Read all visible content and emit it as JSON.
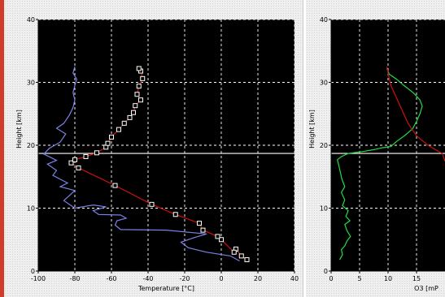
{
  "colors": {
    "plot_bg": "#000000",
    "grid": "#ffffff",
    "temperature": "#cc1111",
    "dewpoint": "#7a82e6",
    "ozone": "#22dd44",
    "tropopause": "#ffffff"
  },
  "chart_data": [
    {
      "type": "line",
      "xlabel": "Temperature [°C]",
      "ylabel": "Height [km]",
      "xlim": [
        -100,
        40
      ],
      "ylim": [
        0,
        40
      ],
      "xticks": [
        "-100",
        "-80",
        "-60",
        "-40",
        "-20",
        "0",
        "20",
        "40"
      ],
      "yticks": [
        "0",
        "10",
        "20",
        "30",
        "40"
      ],
      "grid": true,
      "hline_y": 18.7,
      "series": [
        {
          "color": "#cc1111",
          "markers": true,
          "points": [
            [
              14,
              1.8
            ],
            [
              11,
              2.4
            ],
            [
              8,
              3.5
            ],
            [
              7,
              3.0
            ],
            [
              0,
              5.0
            ],
            [
              -2,
              5.5
            ],
            [
              -10,
              6.5
            ],
            [
              -12,
              7.6
            ],
            [
              -25,
              9.0
            ],
            [
              -38,
              10.6
            ],
            [
              -58,
              13.6
            ],
            [
              -78,
              16.4
            ],
            [
              -82,
              17.2
            ],
            [
              -80,
              17.7
            ],
            [
              -74,
              18.2
            ],
            [
              -68,
              18.8
            ],
            [
              -63,
              19.7
            ],
            [
              -62,
              20.3
            ],
            [
              -60,
              21.3
            ],
            [
              -56,
              22.5
            ],
            [
              -53,
              23.5
            ],
            [
              -50,
              24.4
            ],
            [
              -48,
              25.2
            ],
            [
              -47,
              26.3
            ],
            [
              -44,
              27.2
            ],
            [
              -46,
              28.1
            ],
            [
              -45,
              29.4
            ],
            [
              -43,
              30.6
            ],
            [
              -44,
              31.8
            ],
            [
              -45,
              32.2
            ]
          ]
        },
        {
          "color": "#7a82e6",
          "markers": false,
          "points": [
            [
              10,
              1.6
            ],
            [
              5,
              2.4
            ],
            [
              -8,
              3.0
            ],
            [
              -18,
              3.7
            ],
            [
              -22,
              4.6
            ],
            [
              -15,
              5.3
            ],
            [
              -8,
              5.9
            ],
            [
              -30,
              6.5
            ],
            [
              -55,
              6.6
            ],
            [
              -58,
              7.3
            ],
            [
              -57,
              8.0
            ],
            [
              -52,
              8.4
            ],
            [
              -55,
              8.9
            ],
            [
              -67,
              9.0
            ],
            [
              -70,
              9.6
            ],
            [
              -63,
              10.2
            ],
            [
              -70,
              10.5
            ],
            [
              -80,
              10.0
            ],
            [
              -86,
              11.2
            ],
            [
              -80,
              12.8
            ],
            [
              -88,
              13.4
            ],
            [
              -84,
              14.0
            ],
            [
              -92,
              15.2
            ],
            [
              -90,
              16.0
            ],
            [
              -95,
              17.0
            ],
            [
              -90,
              17.6
            ],
            [
              -97,
              18.6
            ],
            [
              -94,
              19.5
            ],
            [
              -88,
              20.5
            ],
            [
              -85,
              21.8
            ],
            [
              -90,
              22.7
            ],
            [
              -86,
              23.5
            ],
            [
              -83,
              24.8
            ],
            [
              -81,
              26.0
            ],
            [
              -80,
              27.2
            ],
            [
              -81,
              28.4
            ],
            [
              -80,
              29.5
            ],
            [
              -79,
              30.5
            ],
            [
              -81,
              31.5
            ],
            [
              -80,
              32.5
            ]
          ]
        }
      ]
    },
    {
      "type": "line",
      "xlabel": "O3 [mP",
      "ylabel": "Height [km]",
      "xlim": [
        0,
        20
      ],
      "ylim": [
        0,
        40
      ],
      "xticks": [
        "0",
        "5",
        "10",
        "15"
      ],
      "yticks": [
        "0",
        "10",
        "20",
        "30",
        "40"
      ],
      "grid": true,
      "hline_y": 18.7,
      "series": [
        {
          "color": "#22dd44",
          "markers": false,
          "points": [
            [
              1.5,
              1.8
            ],
            [
              2.0,
              2.6
            ],
            [
              1.8,
              3.4
            ],
            [
              2.4,
              4.0
            ],
            [
              2.8,
              4.8
            ],
            [
              3.4,
              5.5
            ],
            [
              2.8,
              6.4
            ],
            [
              2.4,
              7.4
            ],
            [
              3.3,
              8.0
            ],
            [
              2.6,
              8.7
            ],
            [
              3.0,
              9.6
            ],
            [
              2.0,
              10.4
            ],
            [
              2.4,
              11.3
            ],
            [
              1.8,
              12.5
            ],
            [
              2.4,
              13.4
            ],
            [
              1.9,
              14.6
            ],
            [
              1.6,
              15.8
            ],
            [
              1.3,
              17.0
            ],
            [
              1.1,
              17.7
            ],
            [
              1.8,
              18.2
            ],
            [
              3.0,
              18.7
            ],
            [
              5.5,
              19.0
            ],
            [
              7.5,
              19.3
            ],
            [
              9.0,
              19.6
            ],
            [
              10.5,
              19.8
            ],
            [
              11.5,
              20.6
            ],
            [
              13.0,
              21.6
            ],
            [
              14.3,
              22.6
            ],
            [
              15.0,
              23.8
            ],
            [
              15.6,
              25.0
            ],
            [
              16.0,
              26.2
            ],
            [
              15.6,
              27.2
            ],
            [
              14.5,
              28.3
            ],
            [
              12.8,
              29.5
            ],
            [
              11.5,
              30.5
            ],
            [
              10.2,
              31.3
            ],
            [
              9.8,
              32.2
            ]
          ]
        },
        {
          "color": "#cc1111",
          "markers": false,
          "points": [
            [
              24,
              16.0
            ],
            [
              20,
              17.5
            ],
            [
              19.5,
              18.7
            ],
            [
              17.0,
              20.0
            ],
            [
              15.0,
              21.5
            ],
            [
              13.5,
              23.5
            ],
            [
              12.5,
              25.5
            ],
            [
              11.5,
              27.5
            ],
            [
              10.5,
              29.5
            ],
            [
              10.0,
              31.5
            ],
            [
              9.8,
              32.5
            ]
          ]
        }
      ]
    }
  ]
}
